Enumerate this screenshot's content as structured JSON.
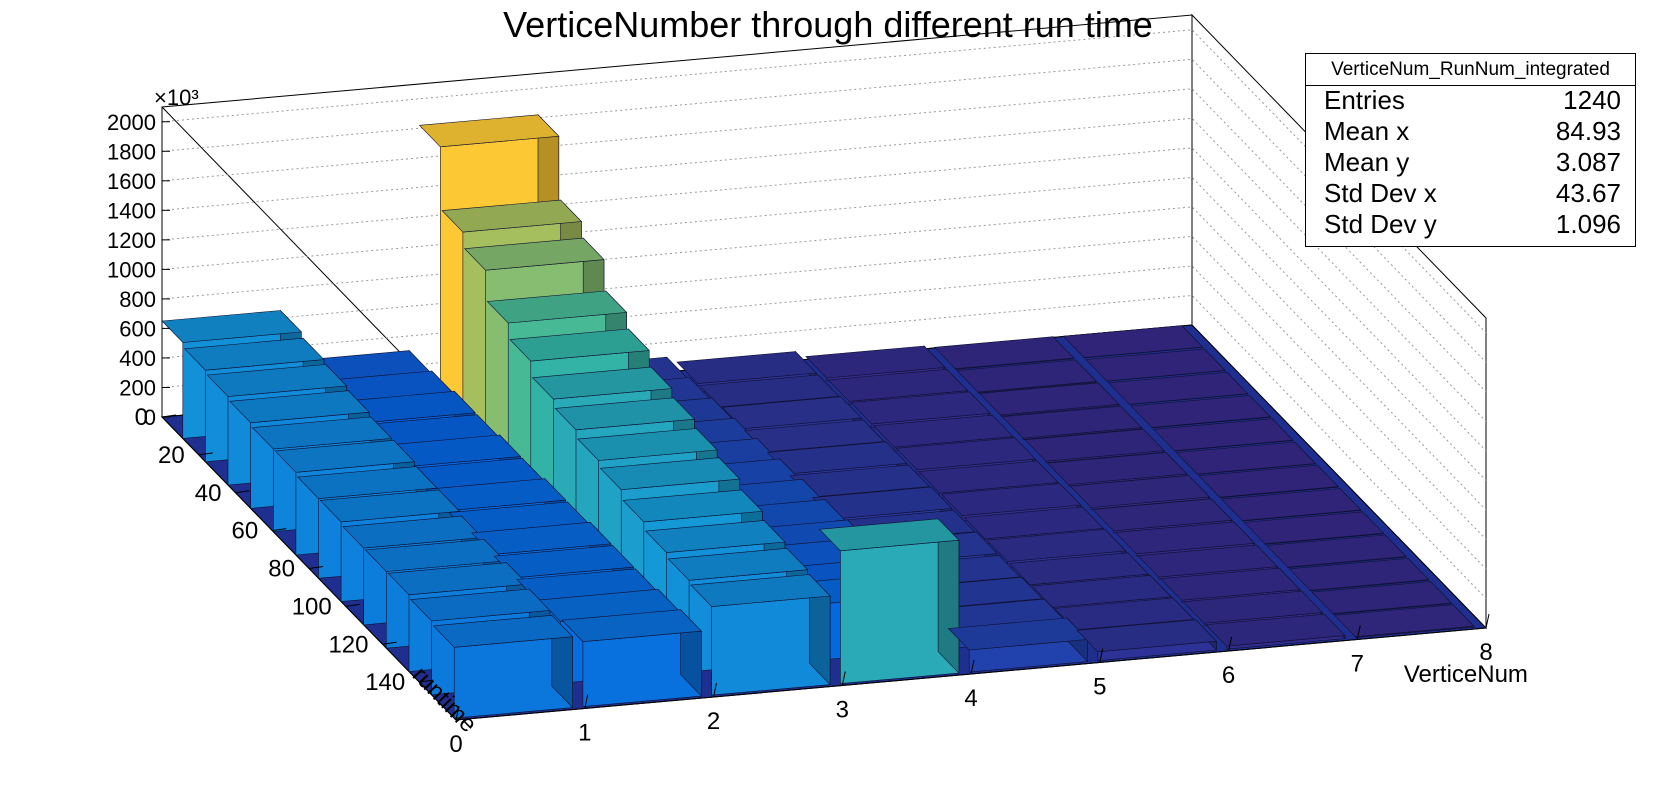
{
  "chart_data": {
    "type": "bar3d",
    "title": "VerticeNumber through different run time",
    "xlabel": "VerticeNum",
    "ylabel": "runtime",
    "zlabel_multiplier": "×10³",
    "xlim": [
      0,
      8
    ],
    "ylim": [
      0,
      160
    ],
    "zlim": [
      0,
      2100
    ],
    "x_ticks": [
      "0",
      "1",
      "2",
      "3",
      "4",
      "5",
      "6",
      "7",
      "8"
    ],
    "y_ticks": [
      "0",
      "20",
      "40",
      "60",
      "80",
      "100",
      "120",
      "140"
    ],
    "z_ticks": [
      "0",
      "200",
      "400",
      "600",
      "800",
      "1000",
      "1200",
      "1400",
      "1600",
      "1800",
      "2000"
    ],
    "grid": true,
    "colormap": "parula",
    "series": [
      {
        "vertice_bin": 0,
        "values": [
          650,
          620,
          600,
          580,
          560,
          560,
          540,
          540,
          520,
          520,
          520,
          500,
          480
        ]
      },
      {
        "vertice_bin": 1,
        "values": [
          300,
          320,
          340,
          340,
          360,
          360,
          380,
          380,
          400,
          400,
          400,
          420,
          440
        ]
      },
      {
        "vertice_bin": 2,
        "values": [
          1820,
          1400,
          1300,
          1100,
          1000,
          900,
          850,
          800,
          760,
          700,
          650,
          620,
          600
        ]
      },
      {
        "vertice_bin": 3,
        "values": [
          100,
          120,
          140,
          160,
          180,
          200,
          220,
          240,
          260,
          300,
          320,
          380,
          900
        ]
      },
      {
        "vertice_bin": 4,
        "values": [
          60,
          60,
          70,
          70,
          80,
          80,
          90,
          90,
          100,
          100,
          110,
          120,
          150
        ]
      },
      {
        "vertice_bin": 5,
        "values": [
          20,
          20,
          25,
          25,
          30,
          30,
          35,
          35,
          40,
          40,
          45,
          50,
          60
        ]
      },
      {
        "vertice_bin": 6,
        "values": [
          5,
          5,
          8,
          8,
          10,
          10,
          12,
          12,
          14,
          14,
          16,
          18,
          20
        ]
      },
      {
        "vertice_bin": 7,
        "values": [
          2,
          2,
          2,
          3,
          3,
          3,
          4,
          4,
          4,
          5,
          5,
          5,
          6
        ]
      }
    ]
  },
  "stats": {
    "name": "VerticeNum_RunNum_integrated",
    "rows": [
      {
        "label": "Entries",
        "value": "1240"
      },
      {
        "label": "Mean x",
        "value": "84.93"
      },
      {
        "label": "Mean y",
        "value": "3.087"
      },
      {
        "label": "Std Dev x",
        "value": "43.67"
      },
      {
        "label": "Std Dev y",
        "value": "1.096"
      }
    ]
  }
}
